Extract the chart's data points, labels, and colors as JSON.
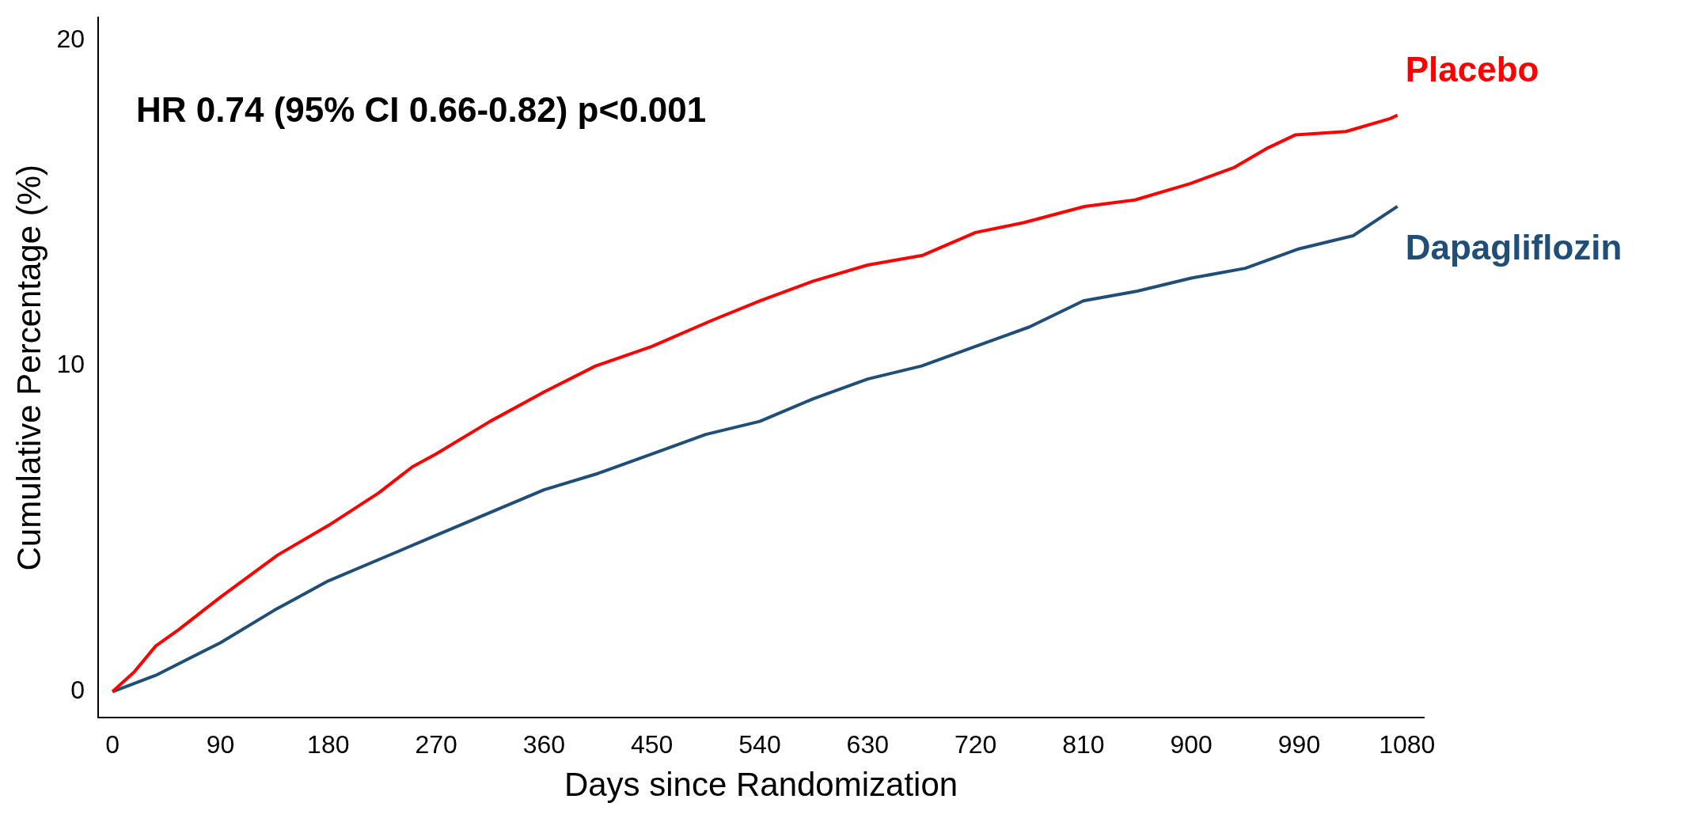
{
  "chart_data": {
    "type": "line",
    "xlabel": "Days since Randomization",
    "ylabel": "Cumulative Percentage (%)",
    "annotations": [
      "HR 0.74 (95% CI 0.66-0.82) p<0.001"
    ],
    "xlim": [
      -12,
      1094
    ],
    "xticks": [
      0,
      90,
      180,
      270,
      360,
      450,
      540,
      630,
      720,
      810,
      900,
      990,
      1080
    ],
    "ylim": [
      -0.8,
      20.7
    ],
    "yticks": [
      0,
      10,
      20
    ],
    "grid": false,
    "legend": false,
    "marker": "none",
    "line_style": "solid",
    "series": [
      {
        "name": "Placebo",
        "color": "#ff0000",
        "x": [
          0,
          18,
          36,
          55,
          90,
          138,
          180,
          222,
          250,
          270,
          315,
          360,
          403,
          450,
          500,
          540,
          584,
          630,
          676,
          720,
          760,
          811,
          853,
          899,
          936,
          964,
          987,
          1029,
          1066,
          1072
        ],
        "values": [
          0,
          0.6,
          1.4,
          1.9,
          2.9,
          4.2,
          5.1,
          6.1,
          6.9,
          7.3,
          8.3,
          9.2,
          10.0,
          10.6,
          11.4,
          12.0,
          12.6,
          13.1,
          13.4,
          14.1,
          14.4,
          14.9,
          15.1,
          15.6,
          16.1,
          16.7,
          17.1,
          17.2,
          17.6,
          17.7
        ]
      },
      {
        "name": "Dapagliflozin",
        "color": "#1f4e79",
        "x": [
          0,
          36,
          90,
          135,
          180,
          225,
          270,
          315,
          360,
          405,
          450,
          495,
          540,
          585,
          630,
          675,
          720,
          765,
          810,
          855,
          900,
          945,
          990,
          1035,
          1072
        ],
        "values": [
          0,
          0.5,
          1.5,
          2.5,
          3.4,
          4.1,
          4.8,
          5.5,
          6.2,
          6.7,
          7.3,
          7.9,
          8.3,
          9.0,
          9.6,
          10.0,
          10.6,
          11.2,
          12.0,
          12.3,
          12.7,
          13.0,
          13.6,
          14.0,
          14.9
        ]
      }
    ]
  }
}
